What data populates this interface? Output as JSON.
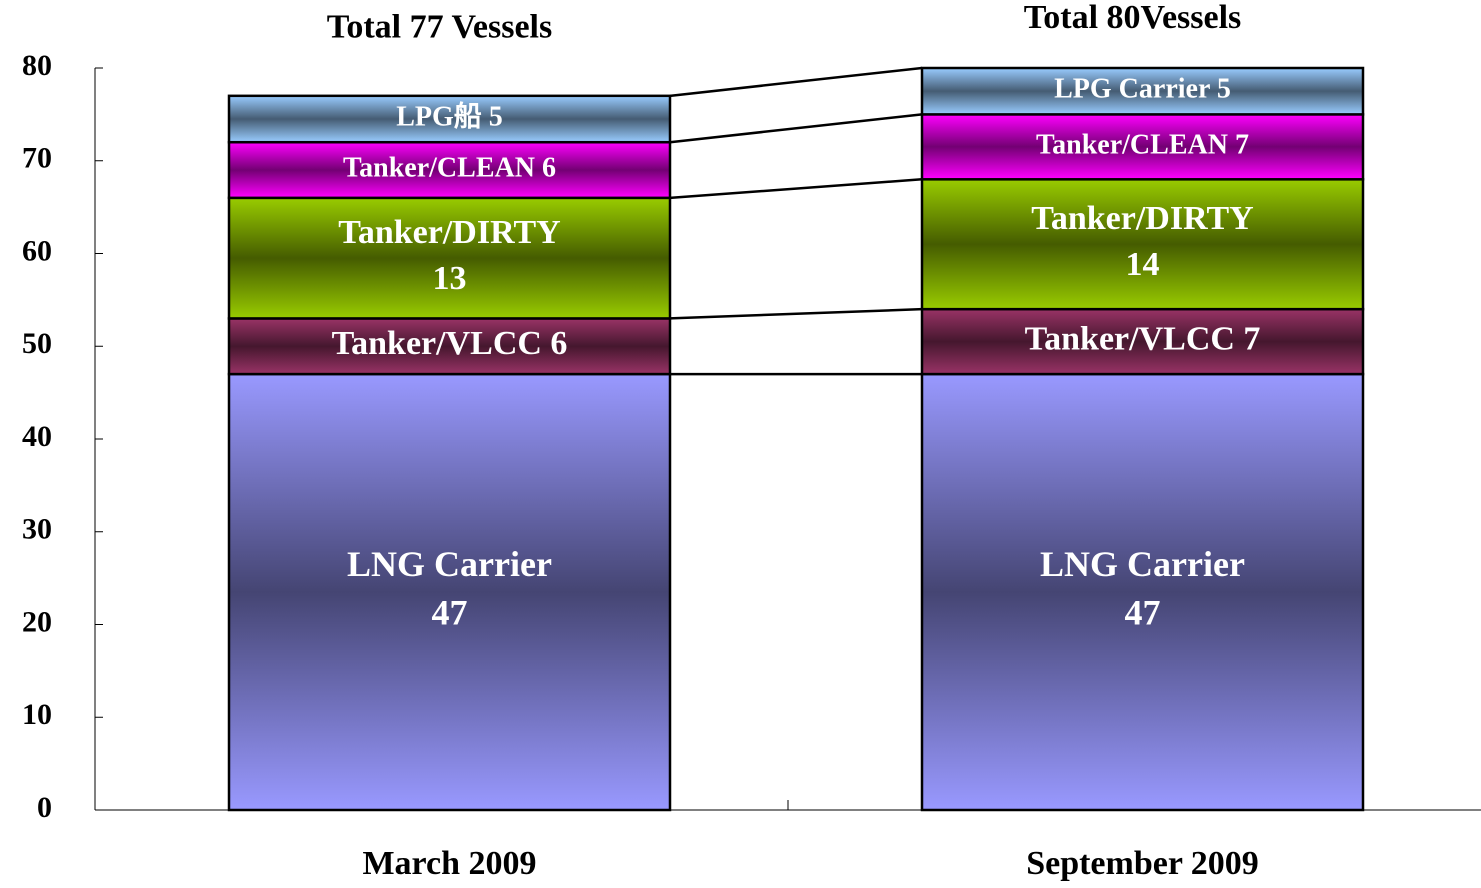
{
  "chart_data": {
    "type": "stacked-bar",
    "categories": [
      "March 2009",
      "September 2009"
    ],
    "annotations": [
      "Total 77 Vessels",
      "Total 80Vessels"
    ],
    "series": [
      {
        "color": "#9999ff",
        "values": [
          47,
          47
        ],
        "value_labels": [
          [
            "LNG Carrier",
            "47"
          ],
          [
            "LNG Carrier",
            "47"
          ]
        ]
      },
      {
        "color": "#993366",
        "values": [
          6,
          7
        ],
        "value_labels": [
          [
            "Tanker/VLCC 6"
          ],
          [
            "Tanker/VLCC 7"
          ]
        ]
      },
      {
        "color": "#99cc00",
        "values": [
          13,
          14
        ],
        "value_labels": [
          [
            "Tanker/DIRTY",
            "13"
          ],
          [
            "Tanker/DIRTY",
            "14"
          ]
        ]
      },
      {
        "color": "#ff00ff",
        "values": [
          6,
          7
        ],
        "value_labels": [
          [
            "Tanker/CLEAN 6"
          ],
          [
            "Tanker/CLEAN 7"
          ]
        ]
      },
      {
        "color": "#99ccff",
        "values": [
          5,
          5
        ],
        "value_labels": [
          [
            "LPG船 5"
          ],
          [
            "LPG Carrier 5"
          ]
        ]
      }
    ],
    "ylim": [
      0,
      80
    ],
    "yticks": [
      0,
      10,
      20,
      30,
      40,
      50,
      60,
      70,
      80
    ]
  }
}
